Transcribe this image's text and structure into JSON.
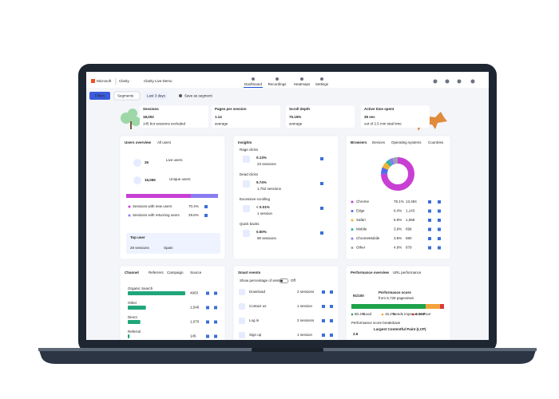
{
  "header": {
    "brand": "Microsoft",
    "product": "Clarity",
    "project": "Clarity Live Demo",
    "nav": [
      "Dashboard",
      "Recordings",
      "Heatmaps",
      "Settings"
    ]
  },
  "toolbar": {
    "filters": "Filters",
    "segments": "Segments",
    "date_range": "Last 3 days",
    "save": "Save as segment"
  },
  "stats": [
    {
      "label": "Sessions",
      "value": "18,002",
      "note": "145 bot sessions excluded"
    },
    {
      "label": "Pages per session",
      "value": "1.14",
      "note": "average"
    },
    {
      "label": "Scroll depth",
      "value": "75.15%",
      "note": "average"
    },
    {
      "label": "Active time spent",
      "value": "36 sec",
      "note": "out of 2.5 min total time"
    }
  ],
  "users": {
    "tabs": [
      "Users overview",
      "All users"
    ],
    "live_value": "26",
    "live_label": "Live users",
    "unique_value": "16,065",
    "unique_label": "Unique users",
    "segments": [
      "Sessions with new users",
      "Sessions with returning users"
    ],
    "values": [
      70.4,
      29.6
    ],
    "value_labels": [
      "70.4%",
      "29.6%"
    ],
    "colors": [
      "#c83fd4",
      "#8a7cf0"
    ],
    "top_user_title": "Top user",
    "top_user_sessions": "28 sessions",
    "top_user_country": "Spain"
  },
  "insights": {
    "title": "Insights",
    "items": [
      {
        "label": "Rage clicks",
        "value": "0.13%",
        "note": "23 sessions"
      },
      {
        "label": "Dead clicks",
        "value": "9.74%",
        "note": "1,752 sessions"
      },
      {
        "label": "Excessive scrolling",
        "value": "< 0.01%",
        "note": "1 session"
      },
      {
        "label": "Quick backs",
        "value": "0.50%",
        "note": "90 sessions"
      }
    ]
  },
  "browsers": {
    "tabs": [
      "Browsers",
      "Devices",
      "Operating systems",
      "Countries"
    ],
    "names": [
      "Chrome",
      "Edge",
      "Safari",
      "Mobile",
      "ChromeMobile",
      "Other"
    ],
    "values": [
      75.1,
      6.4,
      5.9,
      3.9,
      3.8,
      4.9
    ],
    "value_labels": [
      "75.1%",
      "6.4%",
      "5.9%",
      "3.9%",
      "3.8%",
      "4.9%"
    ],
    "counts": [
      "13,484",
      "1,143",
      "1,068",
      "698",
      "690",
      "879"
    ],
    "colors": [
      "#c83fd4",
      "#4f6bed",
      "#f2b233",
      "#2fb5a5",
      "#8a7cf0",
      "#9aa3b5"
    ]
  },
  "channel": {
    "tabs": [
      "Channel",
      "Referrers",
      "Campaign",
      "Source"
    ],
    "names": [
      "Organic Search",
      "Other",
      "Direct",
      "Referral"
    ],
    "values": [
      4903,
      1546,
      1070,
      145
    ],
    "value_labels": [
      "4903",
      "1,546",
      "1,070",
      "145"
    ],
    "color": "#1fa67a"
  },
  "smart_events": {
    "title": "Smart events",
    "toggle_label": "Show percentage of sessions",
    "toggle_state": "Off",
    "names": [
      "Download",
      "Contact us",
      "Log in",
      "Sign up"
    ],
    "counts": [
      "2 sessions",
      "1 session",
      "3 sessions",
      "1 session"
    ]
  },
  "performance": {
    "tabs": [
      "Performance overview",
      "URL performance"
    ],
    "score": "91/100",
    "score_label": "Performance score",
    "score_note": "from 6,728 pageviews",
    "names": [
      "Good",
      "Needs improvement",
      "Poor"
    ],
    "values": [
      80.4,
      15.2,
      4.4
    ],
    "value_labels": [
      "80.4%",
      "15.2%",
      "4.4%"
    ],
    "colors": [
      "#1fa34a",
      "#f2a33a",
      "#d83b3b"
    ],
    "breakdown": "Performance score breakdown",
    "lcp_title": "Largest Contentful Paint (LCP)",
    "lcp_value": "2.6"
  }
}
